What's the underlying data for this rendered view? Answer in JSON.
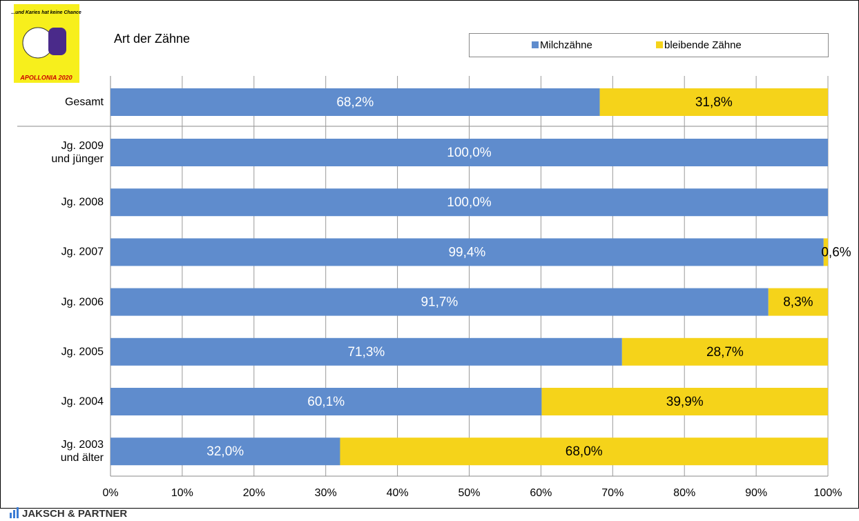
{
  "logo": {
    "slogan": "...und Karies hat keine Chance",
    "name": "APOLLONIA 2020"
  },
  "footer": "JAKSCH & PARTNER",
  "chart_data": {
    "type": "stacked-bar-horizontal",
    "title": "Art der Zähne",
    "categories": [
      "Gesamt",
      "Jg. 2009\nund jünger",
      "Jg. 2008",
      "Jg. 2007",
      "Jg. 2006",
      "Jg. 2005",
      "Jg. 2004",
      "Jg. 2003\nund älter"
    ],
    "series": [
      {
        "name": "Milchzähne",
        "color": "#5f8ccd",
        "label_color": "#ffffff",
        "values": [
          68.2,
          100.0,
          100.0,
          99.4,
          91.7,
          71.3,
          60.1,
          32.0
        ],
        "value_labels": [
          "68,2%",
          "100,0%",
          "100,0%",
          "99,4%",
          "91,7%",
          "71,3%",
          "60,1%",
          "32,0%"
        ]
      },
      {
        "name": "bleibende Zähne",
        "color": "#f5d31a",
        "label_color": "#000000",
        "values": [
          31.8,
          0.0,
          0.0,
          0.6,
          8.3,
          28.7,
          39.9,
          68.0
        ],
        "value_labels": [
          "31,8%",
          null,
          null,
          "0,6%",
          "8,3%",
          "28,7%",
          "39,9%",
          "68,0%"
        ]
      }
    ],
    "xlim": [
      0,
      100
    ],
    "xticks": [
      {
        "value": 0,
        "label": "0%"
      },
      {
        "value": 10,
        "label": "10%"
      },
      {
        "value": 20,
        "label": "20%"
      },
      {
        "value": 30,
        "label": "30%"
      },
      {
        "value": 40,
        "label": "40%"
      },
      {
        "value": 50,
        "label": "50%"
      },
      {
        "value": 60,
        "label": "60%"
      },
      {
        "value": 70,
        "label": "70%"
      },
      {
        "value": 80,
        "label": "80%"
      },
      {
        "value": 90,
        "label": "90%"
      },
      {
        "value": 100,
        "label": "100%"
      }
    ],
    "grid": true,
    "legend": "top-right"
  }
}
